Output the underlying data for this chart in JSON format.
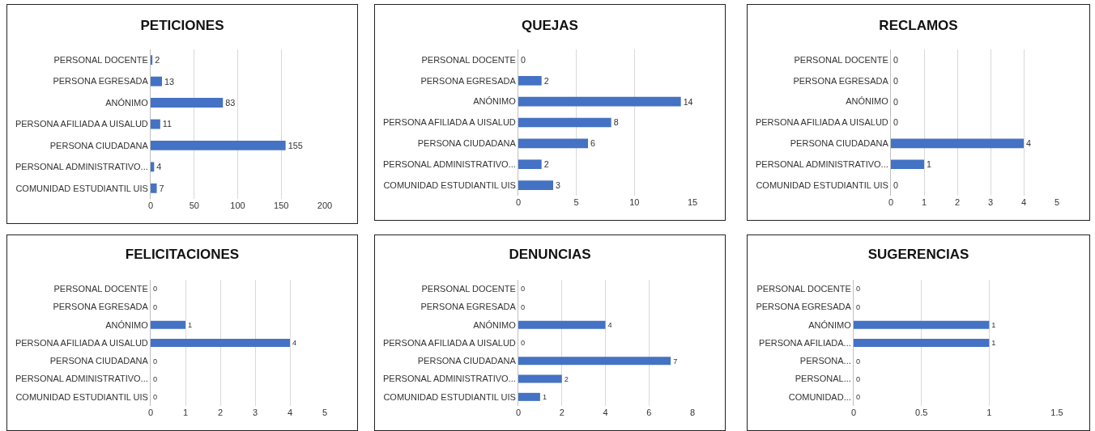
{
  "chart_data": [
    {
      "type": "bar",
      "orientation": "horizontal",
      "title": "PETICIONES",
      "categories": [
        "PERSONAL DOCENTE",
        "PERSONA EGRESADA",
        "ANÓNIMO",
        "PERSONA AFILIADA A UISALUD",
        "PERSONA CIUDADANA",
        "PERSONAL ADMINISTRATIVO...",
        "COMUNIDAD ESTUDIANTIL UIS"
      ],
      "values": [
        2,
        13,
        83,
        11,
        155,
        4,
        7
      ],
      "color": "#4472c4",
      "xlim": [
        0,
        200
      ],
      "xticks": [
        0,
        50,
        100,
        150,
        200
      ],
      "grid": "x",
      "data_labels": true
    },
    {
      "type": "bar",
      "orientation": "horizontal",
      "title": "QUEJAS",
      "categories": [
        "PERSONAL DOCENTE",
        "PERSONA EGRESADA",
        "ANÓNIMO",
        "PERSONA AFILIADA A UISALUD",
        "PERSONA CIUDADANA",
        "PERSONAL ADMINISTRATIVO...",
        "COMUNIDAD ESTUDIANTIL UIS"
      ],
      "values": [
        0,
        2,
        14,
        8,
        6,
        2,
        3
      ],
      "color": "#4472c4",
      "xlim": [
        0,
        15
      ],
      "xticks": [
        0,
        5,
        10,
        15
      ],
      "grid": "x",
      "data_labels": true
    },
    {
      "type": "bar",
      "orientation": "horizontal",
      "title": "RECLAMOS",
      "categories": [
        "PERSONAL DOCENTE",
        "PERSONA EGRESADA",
        "ANÓNIMO",
        "PERSONA AFILIADA A UISALUD",
        "PERSONA CIUDADANA",
        "PERSONAL ADMINISTRATIVO...",
        "COMUNIDAD ESTUDIANTIL UIS"
      ],
      "values": [
        0,
        0,
        0,
        0,
        4,
        1,
        0
      ],
      "color": "#4472c4",
      "xlim": [
        0,
        5
      ],
      "xticks": [
        0,
        1,
        2,
        3,
        4,
        5
      ],
      "grid": "x",
      "data_labels": true
    },
    {
      "type": "bar",
      "orientation": "horizontal",
      "title": "FELICITACIONES",
      "categories": [
        "PERSONAL DOCENTE",
        "PERSONA EGRESADA",
        "ANÓNIMO",
        "PERSONA AFILIADA A UISALUD",
        "PERSONA CIUDADANA",
        "PERSONAL ADMINISTRATIVO...",
        "COMUNIDAD ESTUDIANTIL UIS"
      ],
      "values": [
        0,
        0,
        1,
        4,
        0,
        0,
        0
      ],
      "color": "#4472c4",
      "xlim": [
        0,
        5
      ],
      "xticks": [
        0,
        1,
        2,
        3,
        4,
        5
      ],
      "grid": "x",
      "data_labels": true
    },
    {
      "type": "bar",
      "orientation": "horizontal",
      "title": "DENUNCIAS",
      "categories": [
        "PERSONAL DOCENTE",
        "PERSONA EGRESADA",
        "ANÓNIMO",
        "PERSONA AFILIADA A UISALUD",
        "PERSONA CIUDADANA",
        "PERSONAL ADMINISTRATIVO...",
        "COMUNIDAD ESTUDIANTIL UIS"
      ],
      "values": [
        0,
        0,
        4,
        0,
        7,
        2,
        1
      ],
      "color": "#4472c4",
      "xlim": [
        0,
        8
      ],
      "xticks": [
        0,
        2,
        4,
        6,
        8
      ],
      "grid": "x",
      "data_labels": true
    },
    {
      "type": "bar",
      "orientation": "horizontal",
      "title": "SUGERENCIAS",
      "categories": [
        "PERSONAL DOCENTE",
        "PERSONA EGRESADA",
        "ANÓNIMO",
        "PERSONA AFILIADA...",
        "PERSONA...",
        "PERSONAL...",
        "COMUNIDAD..."
      ],
      "values": [
        0,
        0,
        1,
        1,
        0,
        0,
        0
      ],
      "color": "#4472c4",
      "xlim": [
        0,
        1.5
      ],
      "xticks": [
        0,
        0.5,
        1,
        1.5
      ],
      "grid": "x",
      "data_labels": true
    }
  ]
}
